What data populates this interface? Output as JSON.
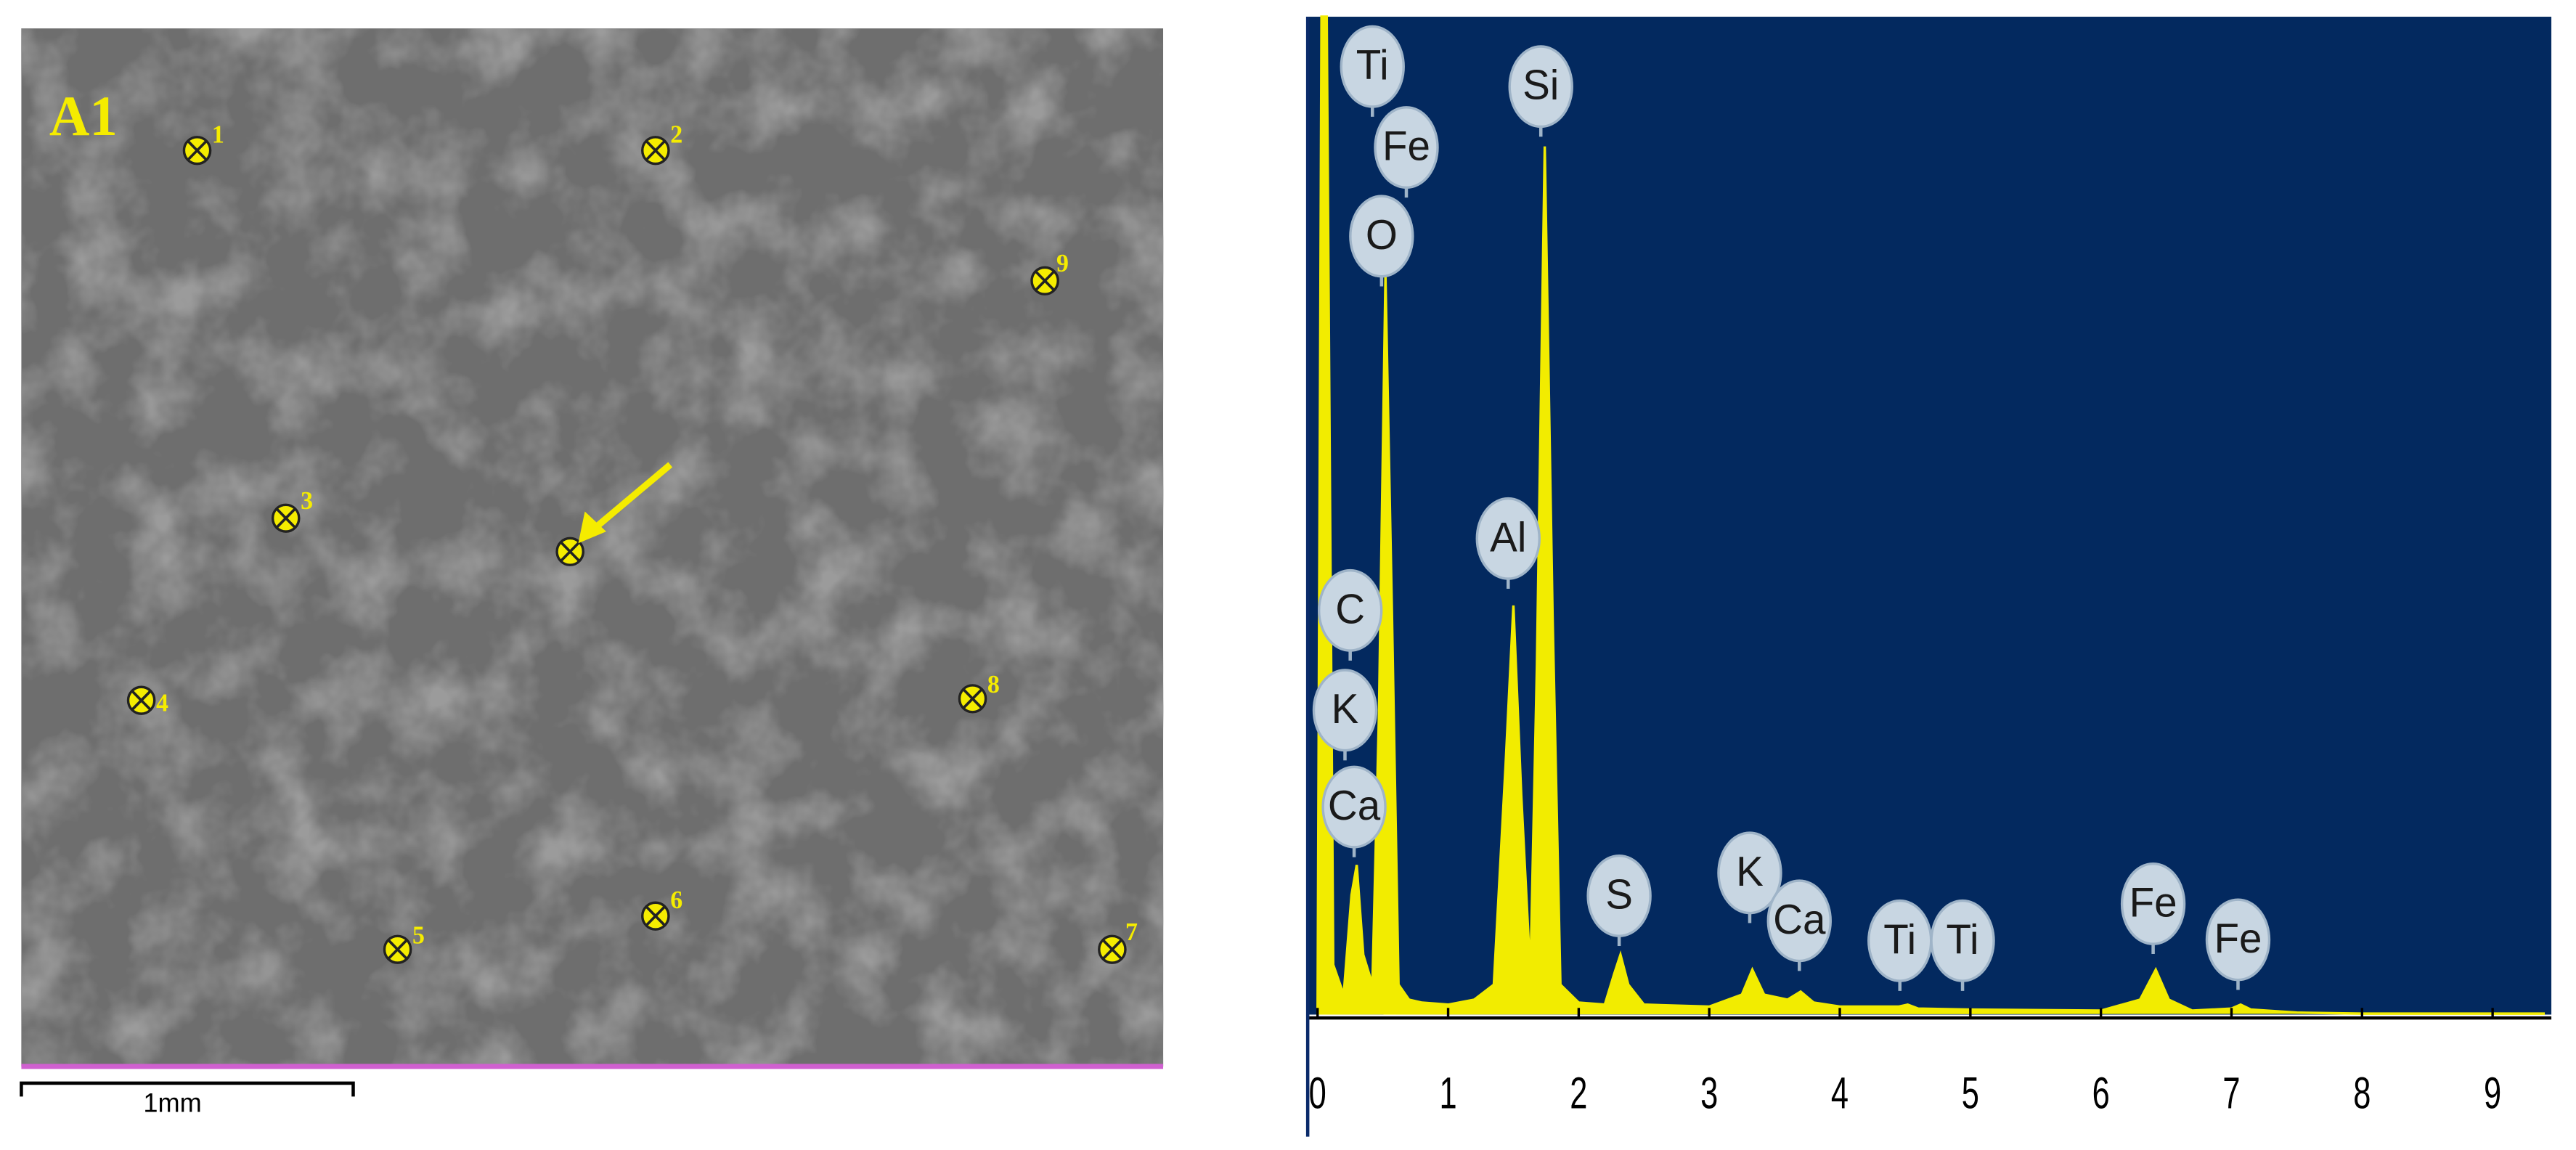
{
  "image": {
    "label": "A1",
    "points": [
      "1",
      "2",
      "9",
      "3",
      "4",
      "8",
      "6",
      "5",
      "7"
    ],
    "scale_bar": "1mm"
  },
  "chart_data": {
    "type": "area",
    "color": "#f2ec00",
    "background": "#03295f",
    "x": [
      0,
      0.03,
      0.07,
      0.12,
      0.2,
      0.26,
      0.3,
      0.35,
      0.42,
      0.47,
      0.52,
      0.57,
      0.62,
      0.7,
      0.8,
      1.0,
      1.2,
      1.35,
      1.44,
      1.5,
      1.56,
      1.63,
      1.68,
      1.74,
      1.8,
      1.86,
      2.0,
      2.2,
      2.27,
      2.32,
      2.38,
      2.5,
      3.0,
      3.25,
      3.33,
      3.42,
      3.6,
      3.7,
      3.8,
      4.0,
      4.45,
      4.52,
      4.6,
      5.0,
      6.0,
      6.3,
      6.42,
      6.52,
      6.7,
      7.0,
      7.07,
      7.15,
      7.5,
      8.0,
      9.0,
      9.4
    ],
    "values": [
      0,
      100,
      100,
      5,
      2,
      12,
      15,
      6,
      3,
      30,
      74,
      40,
      3,
      1.5,
      1.2,
      1,
      1.5,
      3,
      25,
      41,
      22,
      4,
      35,
      87,
      40,
      3,
      1.2,
      1,
      4,
      6,
      3,
      1,
      0.8,
      2,
      4.5,
      2,
      1.5,
      2.3,
      1.2,
      0.8,
      0.8,
      1,
      0.6,
      0.5,
      0.4,
      1.5,
      4.5,
      1.5,
      0.4,
      0.6,
      1,
      0.5,
      0.2,
      0.1,
      0.1,
      0.1
    ],
    "xlim": [
      0,
      9.45
    ],
    "ylim": [
      0,
      100
    ],
    "xticks": [
      0,
      1,
      2,
      3,
      4,
      5,
      6,
      7,
      8,
      9
    ],
    "annotations": [
      {
        "text": "Ti",
        "x": 0.42,
        "y": 95
      },
      {
        "text": "Fe",
        "x": 0.68,
        "y": 86.9
      },
      {
        "text": "O",
        "x": 0.49,
        "y": 78
      },
      {
        "text": "Si",
        "x": 1.71,
        "y": 93
      },
      {
        "text": "Al",
        "x": 1.46,
        "y": 47.7
      },
      {
        "text": "C",
        "x": 0.25,
        "y": 40.5
      },
      {
        "text": "K",
        "x": 0.21,
        "y": 30.5
      },
      {
        "text": "Ca",
        "x": 0.28,
        "y": 20.8
      },
      {
        "text": "S",
        "x": 2.31,
        "y": 11.9
      },
      {
        "text": "K",
        "x": 3.31,
        "y": 14.2
      },
      {
        "text": "Ca",
        "x": 3.69,
        "y": 9.4
      },
      {
        "text": "Ti",
        "x": 4.46,
        "y": 7.4
      },
      {
        "text": "Ti",
        "x": 4.94,
        "y": 7.4
      },
      {
        "text": "Fe",
        "x": 6.4,
        "y": 11.1
      },
      {
        "text": "Fe",
        "x": 7.05,
        "y": 7.5
      }
    ]
  }
}
